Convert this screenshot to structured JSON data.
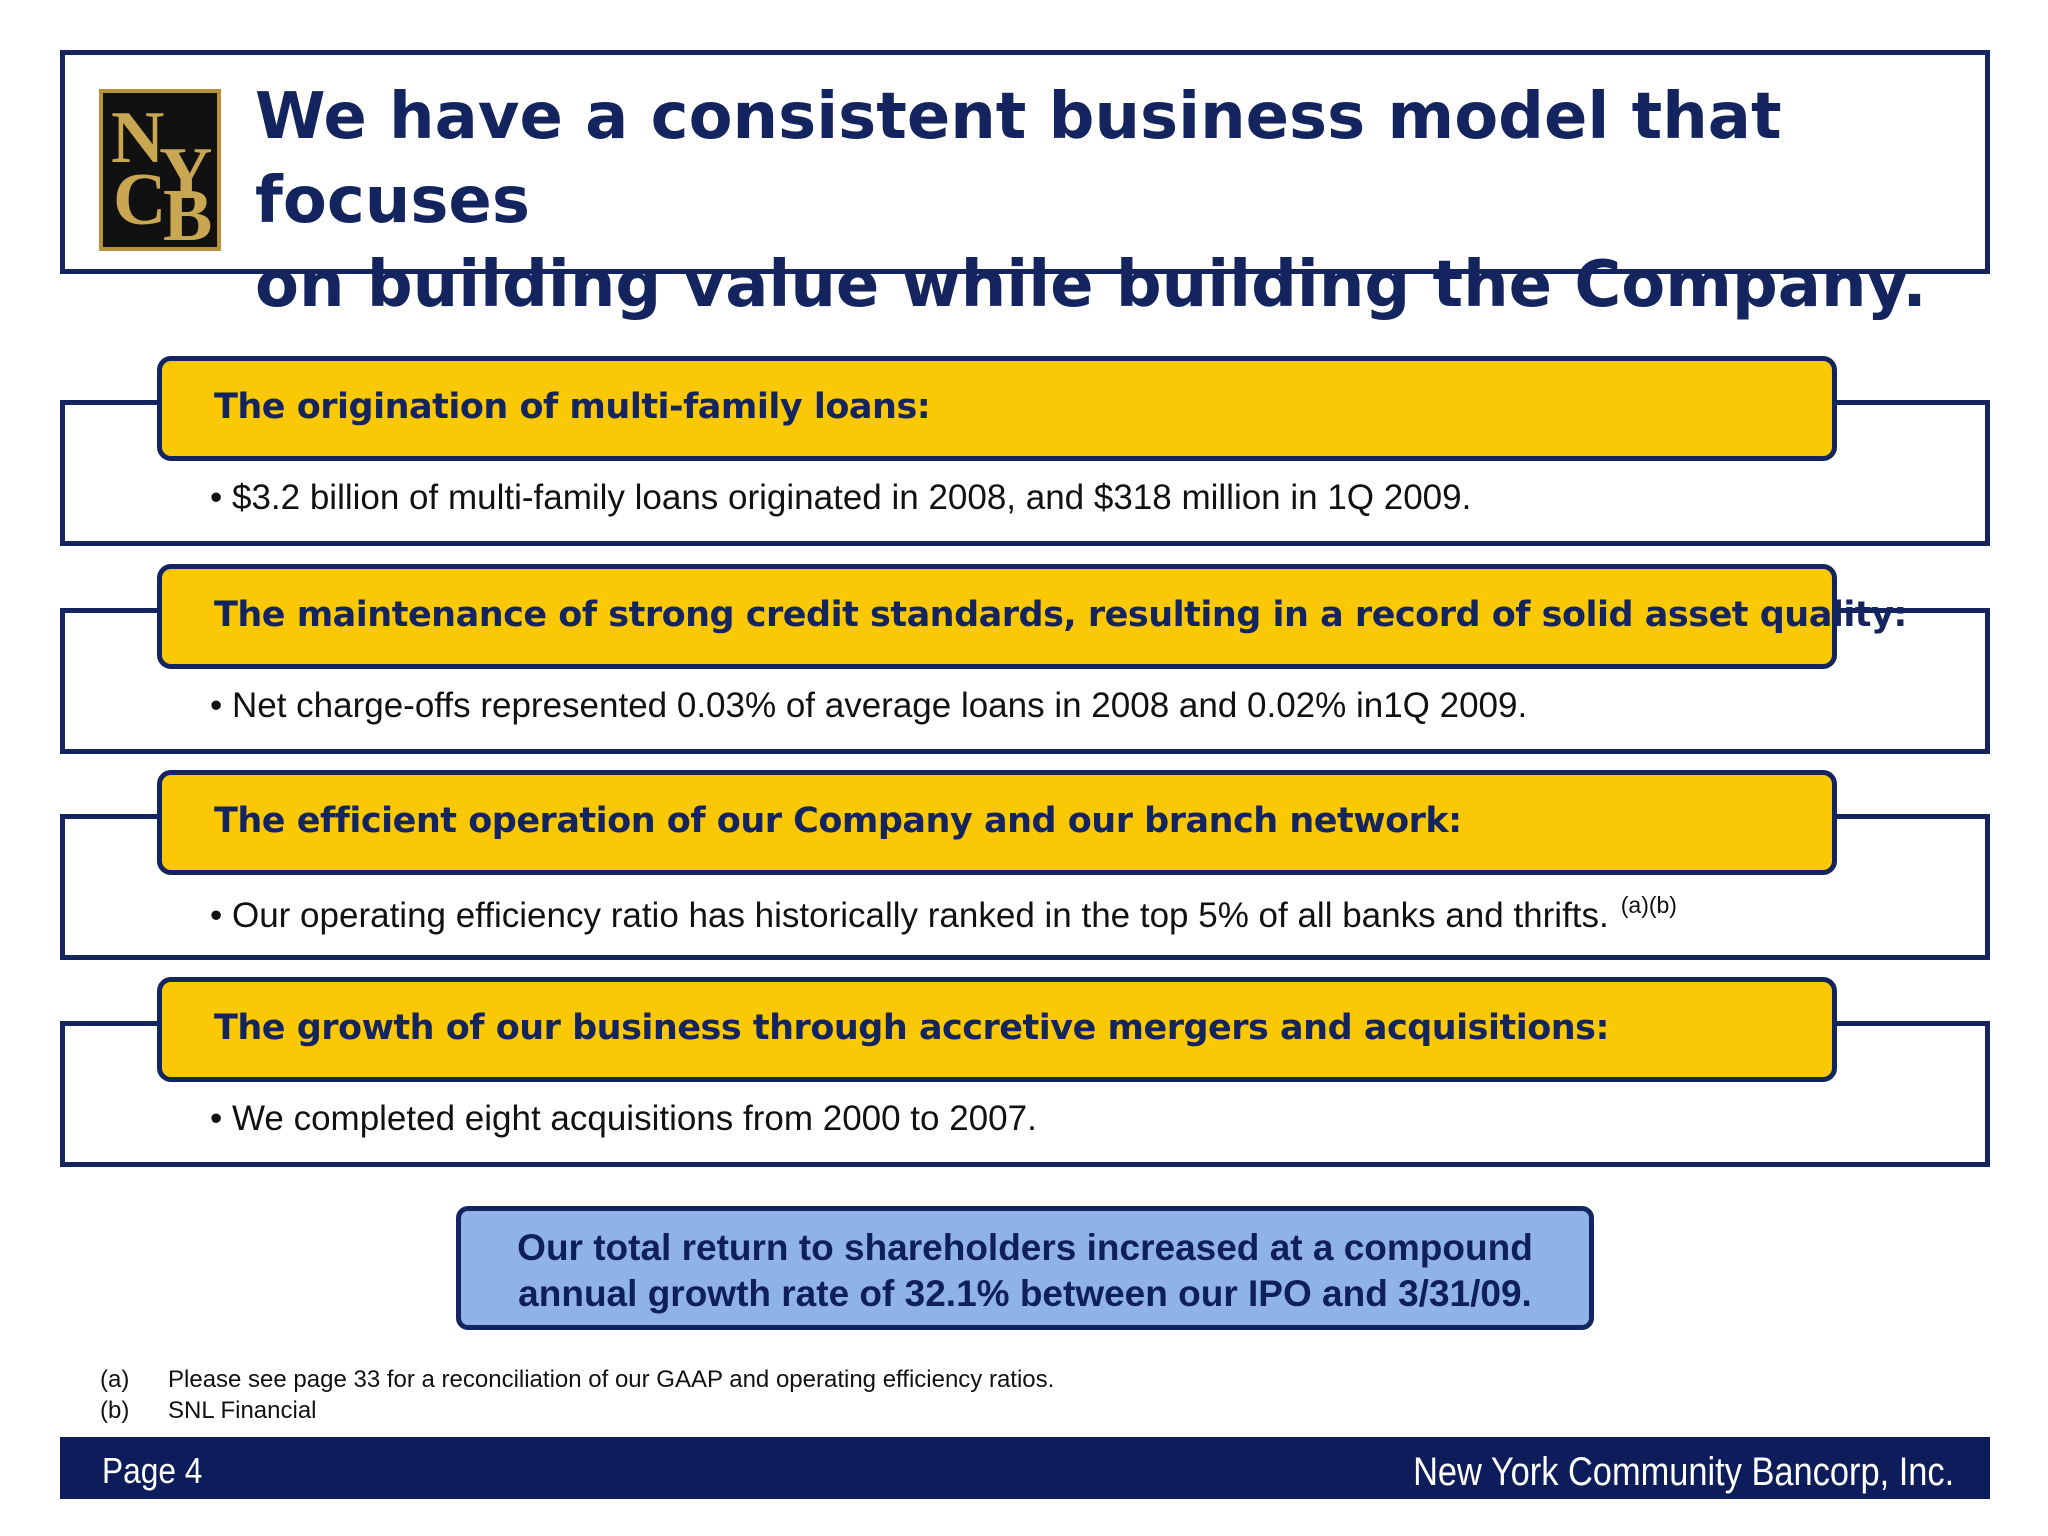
{
  "header": {
    "logo_letters": [
      "N",
      "Y",
      "C",
      "B"
    ],
    "title_line1": "We have a consistent business model that focuses",
    "title_line2": "on building value while building the Company."
  },
  "sections": [
    {
      "heading": "The origination of multi-family loans:",
      "bullet": "• $3.2 billion of multi-family loans originated in 2008, and $318 million in 1Q 2009.",
      "superscript": ""
    },
    {
      "heading": "The maintenance of strong credit standards, resulting in a record of solid asset quality:",
      "bullet": "• Net charge-offs represented 0.03% of average loans in 2008 and 0.02% in1Q 2009.",
      "superscript": ""
    },
    {
      "heading": "The efficient operation of our Company and our branch network:",
      "bullet": "• Our operating efficiency ratio has historically ranked in the top 5% of all banks and thrifts.",
      "superscript": "(a)(b)"
    },
    {
      "heading": "The growth of our business through accretive mergers and acquisitions:",
      "bullet": "• We completed eight acquisitions from 2000 to 2007.",
      "superscript": ""
    }
  ],
  "callout": {
    "line1": "Our total return to shareholders increased at a compound",
    "line2": "annual growth rate of 32.1% between our IPO and 3/31/09."
  },
  "footnotes": [
    {
      "marker": "(a)",
      "text": "Please see page 33 for a reconciliation of our GAAP and operating efficiency ratios."
    },
    {
      "marker": "(b)",
      "text": "SNL Financial"
    }
  ],
  "footer": {
    "page": "Page 4",
    "company": "New York Community Bancorp, Inc."
  },
  "colors": {
    "navy": "#14245e",
    "gold": "#fbc806",
    "light_blue": "#8fb3e6"
  }
}
